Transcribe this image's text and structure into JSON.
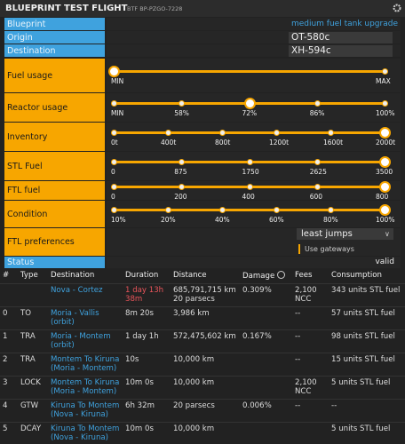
{
  "header": {
    "title": "BLUEPRINT TEST FLIGHT",
    "subtitle": "BTF BP-PZGO-7228"
  },
  "fields": [
    {
      "label": "Blueprint",
      "value": "medium fuel tank upgrade"
    },
    {
      "label": "Origin",
      "value": "OT-580c"
    },
    {
      "label": "Destination",
      "value": "XH-594c"
    }
  ],
  "sliders": [
    {
      "label": "Fuel usage",
      "ticks": [
        "MIN",
        "MAX"
      ],
      "value": "MIN"
    },
    {
      "label": "Reactor usage",
      "ticks": [
        "MIN",
        "58%",
        "72%",
        "86%",
        "100%"
      ],
      "value": "72%"
    },
    {
      "label": "Inventory",
      "ticks": [
        "0t",
        "400t",
        "800t",
        "1200t",
        "1600t",
        "2000t"
      ],
      "value": "2000t"
    },
    {
      "label": "STL Fuel",
      "ticks": [
        "0",
        "875",
        "1750",
        "2625",
        "3500"
      ],
      "value": "3500"
    },
    {
      "label": "FTL fuel",
      "ticks": [
        "0",
        "200",
        "400",
        "600",
        "800"
      ],
      "value": "800"
    },
    {
      "label": "Condition",
      "ticks": [
        "10%",
        "20%",
        "40%",
        "60%",
        "80%",
        "100%"
      ],
      "value": "100%"
    }
  ],
  "ftl_preferences": {
    "label": "FTL preferences",
    "selected": "least jumps",
    "checkbox": "Use gateways"
  },
  "status": {
    "label": "Status",
    "value": "valid"
  },
  "table": {
    "columns": [
      "#",
      "Type",
      "Destination",
      "Duration",
      "Distance",
      "Damage",
      "Fees",
      "Consumption"
    ],
    "summary": [
      null,
      null,
      "Nova - Cortez",
      "1 day 13h 38m",
      [
        "685,791,715 km",
        "20 parsecs"
      ],
      "0.309%",
      "2,100 NCC",
      "343 units STL fuel"
    ],
    "rows": [
      [
        "0",
        "TO",
        "Moria - Vallis (orbit)",
        "8m 20s",
        "3,986 km",
        null,
        "--",
        "57 units STL fuel"
      ],
      [
        "1",
        "TRA",
        "Moria - Montem (orbit)",
        "1 day 1h",
        "572,475,602 km",
        "0.167%",
        "--",
        "98 units STL fuel"
      ],
      [
        "2",
        "TRA",
        "Montem To Kiruna (Moria - Montem)",
        "10s",
        "10,000 km",
        null,
        "--",
        "15 units STL fuel"
      ],
      [
        "3",
        "LOCK",
        "Montem To Kiruna (Moria - Montem)",
        "10m 0s",
        "10,000 km",
        null,
        "2,100 NCC",
        "5 units STL fuel"
      ],
      [
        "4",
        "GTW",
        "Kiruna To Montem (Nova - Kiruna)",
        "6h 32m",
        "20 parsecs",
        "0.006%",
        "--",
        "--"
      ],
      [
        "5",
        "DCAY",
        "Kiruna To Montem (Nova - Kiruna)",
        "10m 0s",
        "10,000 km",
        null,
        null,
        "5 units STL fuel"
      ]
    ]
  }
}
